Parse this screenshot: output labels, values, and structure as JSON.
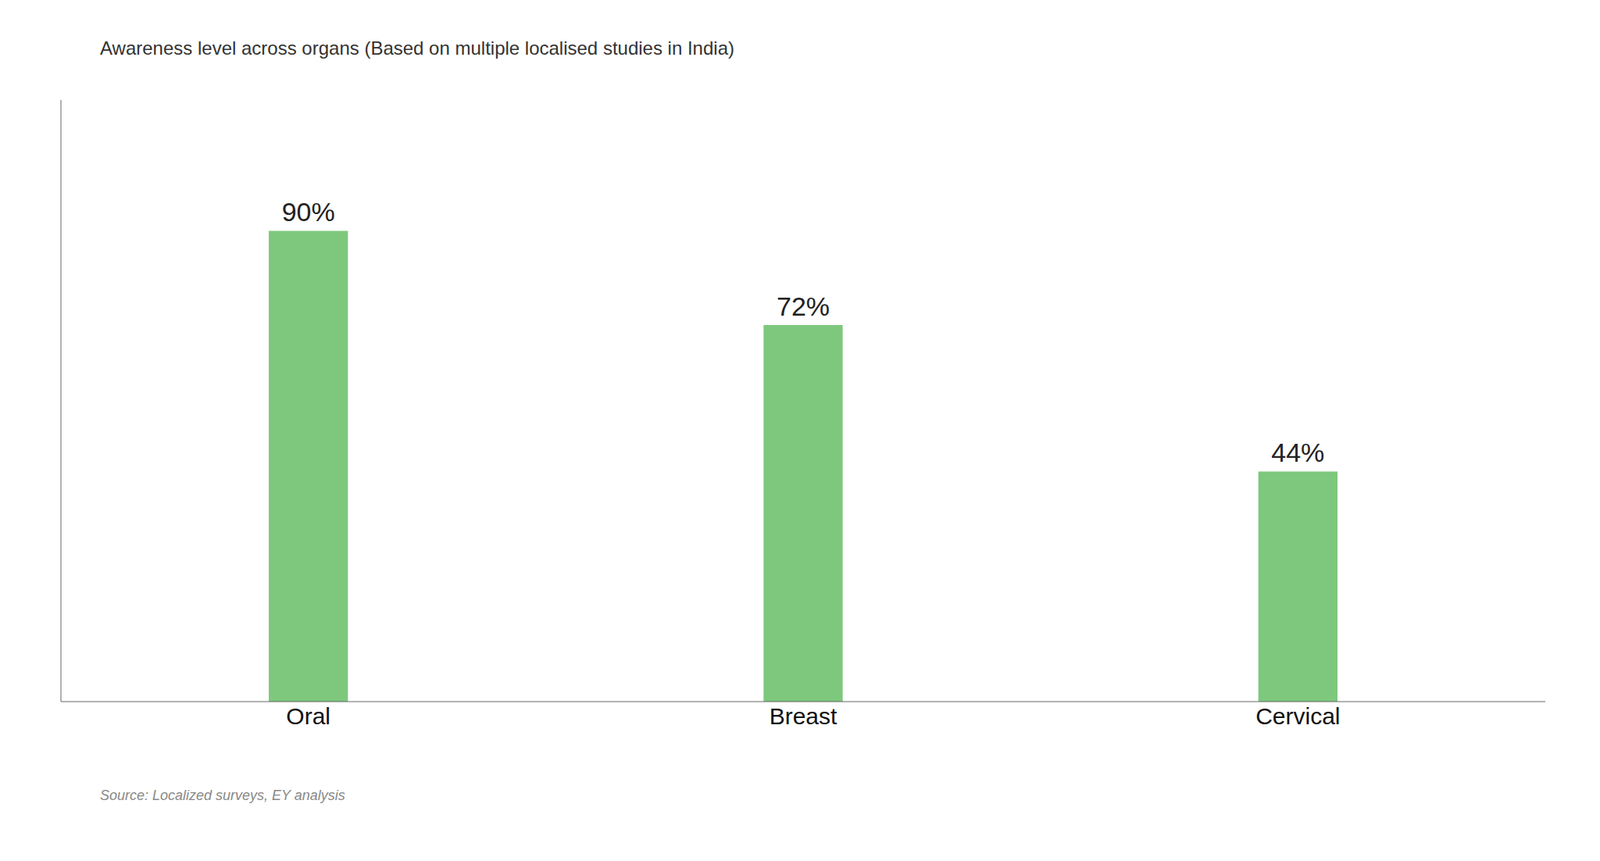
{
  "chart_data": {
    "type": "bar",
    "title": "Awareness level across organs (Based on multiple localised studies in India)",
    "categories": [
      "Oral",
      "Breast",
      "Cervical"
    ],
    "values": [
      90,
      72,
      44
    ],
    "value_labels": [
      "90%",
      "72%",
      "44%"
    ],
    "data_labels": true,
    "color": "#7dc87d",
    "ylim": [
      0,
      115
    ],
    "tick_labels": "x",
    "grid": false,
    "annotations": [
      "Source: Localized surveys, EY analysis"
    ]
  }
}
